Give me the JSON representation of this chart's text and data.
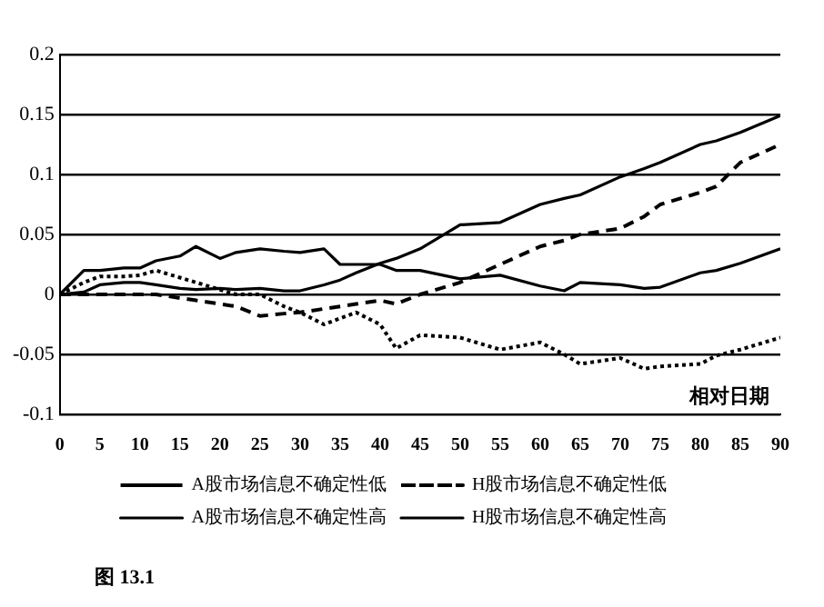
{
  "chart_data": {
    "type": "line",
    "xlabel": "相对日期",
    "x": [
      0,
      3,
      5,
      8,
      10,
      12,
      15,
      17,
      20,
      22,
      25,
      28,
      30,
      33,
      35,
      37,
      40,
      42,
      45,
      50,
      55,
      60,
      63,
      65,
      70,
      73,
      75,
      80,
      82,
      85,
      90
    ],
    "xlim": [
      0,
      90
    ],
    "xticks": [
      0,
      5,
      10,
      15,
      20,
      25,
      30,
      35,
      40,
      45,
      50,
      55,
      60,
      65,
      70,
      75,
      80,
      85,
      90
    ],
    "ylim": [
      -0.1,
      0.2
    ],
    "yticks": [
      -0.1,
      -0.05,
      0,
      0.05,
      0.1,
      0.15,
      0.2
    ],
    "grid": "y",
    "legend": "bottom",
    "marker": "none",
    "series": [
      {
        "name": "A股市场信息不确定性低",
        "color": "#000000",
        "line_style": "dotted",
        "values": [
          0,
          0.01,
          0.015,
          0.015,
          0.016,
          0.02,
          0.014,
          0.01,
          0.004,
          0,
          0,
          -0.01,
          -0.015,
          -0.025,
          -0.02,
          -0.015,
          -0.025,
          -0.045,
          -0.034,
          -0.036,
          -0.046,
          -0.04,
          -0.05,
          -0.058,
          -0.053,
          -0.062,
          -0.06,
          -0.058,
          -0.051,
          -0.046,
          -0.036
        ]
      },
      {
        "name": "H股市场信息不确定性低",
        "color": "#000000",
        "line_style": "dashed",
        "values": [
          0,
          0,
          0,
          0,
          0,
          0,
          -0.003,
          -0.005,
          -0.008,
          -0.01,
          -0.018,
          -0.016,
          -0.015,
          -0.012,
          -0.01,
          -0.008,
          -0.005,
          -0.008,
          0,
          0.01,
          0.025,
          0.04,
          0.045,
          0.05,
          0.055,
          0.065,
          0.075,
          0.085,
          0.09,
          0.11,
          0.125
        ]
      },
      {
        "name": "A股市场信息不确定性高",
        "color": "#000000",
        "line_style": "solid",
        "values": [
          0,
          0.002,
          0.008,
          0.01,
          0.01,
          0.008,
          0.005,
          0.004,
          0.005,
          0.004,
          0.005,
          0.003,
          0.003,
          0.008,
          0.012,
          0.018,
          0.026,
          0.03,
          0.038,
          0.058,
          0.06,
          0.075,
          0.08,
          0.083,
          0.098,
          0.105,
          0.11,
          0.125,
          0.128,
          0.135,
          0.149
        ]
      },
      {
        "name": "H股市场信息不确定性高",
        "color": "#000000",
        "line_style": "solid",
        "values": [
          0,
          0.02,
          0.02,
          0.022,
          0.022,
          0.028,
          0.032,
          0.04,
          0.03,
          0.035,
          0.038,
          0.036,
          0.035,
          0.038,
          0.025,
          0.025,
          0.025,
          0.02,
          0.02,
          0.013,
          0.016,
          0.007,
          0.003,
          0.01,
          0.008,
          0.005,
          0.006,
          0.018,
          0.02,
          0.026,
          0.038
        ]
      }
    ],
    "annotations": [
      "图 13.1"
    ]
  }
}
